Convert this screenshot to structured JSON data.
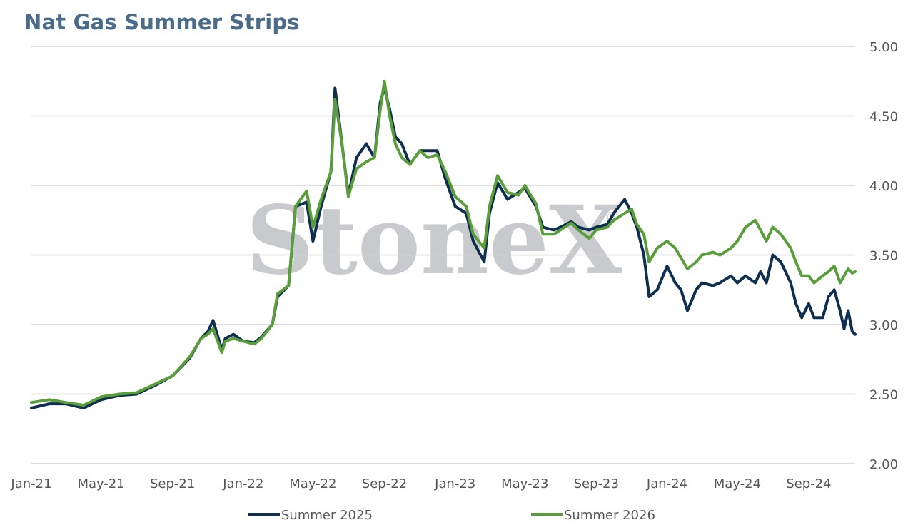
{
  "chart_data": {
    "type": "line",
    "title": "Nat Gas Summer Strips",
    "xlabel": "",
    "ylabel": "",
    "watermark": "StoneX",
    "ylim": [
      2.0,
      5.0
    ],
    "y_ticks": [
      "5.00",
      "4.50",
      "4.00",
      "3.50",
      "3.00",
      "2.50",
      "2.00"
    ],
    "x_ticks": [
      "Jan-21",
      "May-21",
      "Sep-21",
      "Jan-22",
      "May-22",
      "Sep-22",
      "Jan-23",
      "May-23",
      "Sep-23",
      "Jan-24",
      "May-24",
      "Sep-24"
    ],
    "x_range": [
      "2021-01-01",
      "2024-11-20"
    ],
    "grid": true,
    "legend_position": "bottom",
    "series": [
      {
        "name": "Summer 2025",
        "color": "#0e2f50",
        "points": [
          [
            "2021-01-01",
            2.4
          ],
          [
            "2021-02-01",
            2.43
          ],
          [
            "2021-03-01",
            2.43
          ],
          [
            "2021-04-01",
            2.4
          ],
          [
            "2021-05-01",
            2.46
          ],
          [
            "2021-06-01",
            2.49
          ],
          [
            "2021-07-01",
            2.5
          ],
          [
            "2021-08-01",
            2.56
          ],
          [
            "2021-09-01",
            2.63
          ],
          [
            "2021-10-01",
            2.76
          ],
          [
            "2021-10-20",
            2.9
          ],
          [
            "2021-11-01",
            2.95
          ],
          [
            "2021-11-10",
            3.03
          ],
          [
            "2021-11-25",
            2.82
          ],
          [
            "2021-12-01",
            2.9
          ],
          [
            "2021-12-15",
            2.93
          ],
          [
            "2022-01-01",
            2.88
          ],
          [
            "2022-01-20",
            2.87
          ],
          [
            "2022-02-01",
            2.91
          ],
          [
            "2022-02-20",
            3.0
          ],
          [
            "2022-03-01",
            3.2
          ],
          [
            "2022-03-20",
            3.28
          ],
          [
            "2022-04-01",
            3.85
          ],
          [
            "2022-04-20",
            3.88
          ],
          [
            "2022-05-01",
            3.6
          ],
          [
            "2022-05-15",
            3.85
          ],
          [
            "2022-06-01",
            4.1
          ],
          [
            "2022-06-08",
            4.7
          ],
          [
            "2022-06-20",
            4.3
          ],
          [
            "2022-07-01",
            3.93
          ],
          [
            "2022-07-15",
            4.2
          ],
          [
            "2022-08-01",
            4.3
          ],
          [
            "2022-08-15",
            4.2
          ],
          [
            "2022-08-25",
            4.6
          ],
          [
            "2022-09-01",
            4.7
          ],
          [
            "2022-09-10",
            4.55
          ],
          [
            "2022-09-20",
            4.35
          ],
          [
            "2022-10-01",
            4.3
          ],
          [
            "2022-10-15",
            4.15
          ],
          [
            "2022-11-01",
            4.25
          ],
          [
            "2022-11-15",
            4.25
          ],
          [
            "2022-12-01",
            4.25
          ],
          [
            "2022-12-15",
            4.05
          ],
          [
            "2023-01-01",
            3.85
          ],
          [
            "2023-01-20",
            3.8
          ],
          [
            "2023-02-01",
            3.6
          ],
          [
            "2023-02-20",
            3.45
          ],
          [
            "2023-03-01",
            3.8
          ],
          [
            "2023-03-15",
            4.02
          ],
          [
            "2023-04-01",
            3.9
          ],
          [
            "2023-04-20",
            3.95
          ],
          [
            "2023-05-01",
            3.98
          ],
          [
            "2023-05-20",
            3.85
          ],
          [
            "2023-06-01",
            3.7
          ],
          [
            "2023-06-20",
            3.68
          ],
          [
            "2023-07-01",
            3.7
          ],
          [
            "2023-07-20",
            3.74
          ],
          [
            "2023-08-01",
            3.7
          ],
          [
            "2023-08-20",
            3.68
          ],
          [
            "2023-09-01",
            3.7
          ],
          [
            "2023-09-20",
            3.72
          ],
          [
            "2023-10-01",
            3.8
          ],
          [
            "2023-10-20",
            3.9
          ],
          [
            "2023-11-01",
            3.8
          ],
          [
            "2023-11-10",
            3.7
          ],
          [
            "2023-11-22",
            3.5
          ],
          [
            "2023-12-01",
            3.2
          ],
          [
            "2023-12-15",
            3.25
          ],
          [
            "2024-01-01",
            3.42
          ],
          [
            "2024-01-15",
            3.3
          ],
          [
            "2024-01-25",
            3.25
          ],
          [
            "2024-02-05",
            3.1
          ],
          [
            "2024-02-20",
            3.25
          ],
          [
            "2024-03-01",
            3.3
          ],
          [
            "2024-03-20",
            3.28
          ],
          [
            "2024-04-01",
            3.3
          ],
          [
            "2024-04-20",
            3.35
          ],
          [
            "2024-05-01",
            3.3
          ],
          [
            "2024-05-15",
            3.35
          ],
          [
            "2024-06-01",
            3.3
          ],
          [
            "2024-06-10",
            3.38
          ],
          [
            "2024-06-20",
            3.3
          ],
          [
            "2024-07-01",
            3.5
          ],
          [
            "2024-07-15",
            3.45
          ],
          [
            "2024-08-01",
            3.3
          ],
          [
            "2024-08-10",
            3.15
          ],
          [
            "2024-08-20",
            3.05
          ],
          [
            "2024-09-01",
            3.15
          ],
          [
            "2024-09-10",
            3.05
          ],
          [
            "2024-09-25",
            3.05
          ],
          [
            "2024-10-05",
            3.2
          ],
          [
            "2024-10-15",
            3.25
          ],
          [
            "2024-10-25",
            3.1
          ],
          [
            "2024-11-01",
            2.97
          ],
          [
            "2024-11-08",
            3.1
          ],
          [
            "2024-11-15",
            2.95
          ],
          [
            "2024-11-20",
            2.93
          ]
        ]
      },
      {
        "name": "Summer 2026",
        "color": "#5a9e3c",
        "points": [
          [
            "2021-01-01",
            2.44
          ],
          [
            "2021-02-01",
            2.46
          ],
          [
            "2021-03-01",
            2.44
          ],
          [
            "2021-04-01",
            2.42
          ],
          [
            "2021-05-01",
            2.48
          ],
          [
            "2021-06-01",
            2.5
          ],
          [
            "2021-07-01",
            2.51
          ],
          [
            "2021-08-01",
            2.57
          ],
          [
            "2021-09-01",
            2.63
          ],
          [
            "2021-10-01",
            2.77
          ],
          [
            "2021-10-20",
            2.9
          ],
          [
            "2021-11-01",
            2.93
          ],
          [
            "2021-11-10",
            2.97
          ],
          [
            "2021-11-25",
            2.8
          ],
          [
            "2021-12-01",
            2.88
          ],
          [
            "2021-12-15",
            2.9
          ],
          [
            "2022-01-01",
            2.88
          ],
          [
            "2022-01-20",
            2.86
          ],
          [
            "2022-02-01",
            2.9
          ],
          [
            "2022-02-20",
            3.0
          ],
          [
            "2022-03-01",
            3.22
          ],
          [
            "2022-03-20",
            3.28
          ],
          [
            "2022-04-01",
            3.85
          ],
          [
            "2022-04-20",
            3.96
          ],
          [
            "2022-05-01",
            3.7
          ],
          [
            "2022-05-15",
            3.9
          ],
          [
            "2022-06-01",
            4.1
          ],
          [
            "2022-06-08",
            4.62
          ],
          [
            "2022-06-20",
            4.3
          ],
          [
            "2022-07-01",
            3.92
          ],
          [
            "2022-07-15",
            4.12
          ],
          [
            "2022-08-01",
            4.17
          ],
          [
            "2022-08-15",
            4.2
          ],
          [
            "2022-08-25",
            4.55
          ],
          [
            "2022-09-01",
            4.75
          ],
          [
            "2022-09-10",
            4.5
          ],
          [
            "2022-09-20",
            4.3
          ],
          [
            "2022-10-01",
            4.2
          ],
          [
            "2022-10-15",
            4.15
          ],
          [
            "2022-11-01",
            4.25
          ],
          [
            "2022-11-15",
            4.2
          ],
          [
            "2022-12-01",
            4.22
          ],
          [
            "2022-12-15",
            4.1
          ],
          [
            "2023-01-01",
            3.92
          ],
          [
            "2023-01-20",
            3.85
          ],
          [
            "2023-02-01",
            3.65
          ],
          [
            "2023-02-20",
            3.55
          ],
          [
            "2023-03-01",
            3.85
          ],
          [
            "2023-03-15",
            4.07
          ],
          [
            "2023-04-01",
            3.95
          ],
          [
            "2023-04-20",
            3.93
          ],
          [
            "2023-05-01",
            4.0
          ],
          [
            "2023-05-20",
            3.87
          ],
          [
            "2023-06-01",
            3.65
          ],
          [
            "2023-06-20",
            3.65
          ],
          [
            "2023-07-01",
            3.68
          ],
          [
            "2023-07-20",
            3.73
          ],
          [
            "2023-08-01",
            3.68
          ],
          [
            "2023-08-20",
            3.62
          ],
          [
            "2023-09-01",
            3.68
          ],
          [
            "2023-09-20",
            3.7
          ],
          [
            "2023-10-01",
            3.75
          ],
          [
            "2023-10-20",
            3.8
          ],
          [
            "2023-11-01",
            3.83
          ],
          [
            "2023-11-10",
            3.72
          ],
          [
            "2023-11-22",
            3.65
          ],
          [
            "2023-12-01",
            3.45
          ],
          [
            "2023-12-15",
            3.55
          ],
          [
            "2024-01-01",
            3.6
          ],
          [
            "2024-01-15",
            3.55
          ],
          [
            "2024-01-25",
            3.48
          ],
          [
            "2024-02-05",
            3.4
          ],
          [
            "2024-02-20",
            3.45
          ],
          [
            "2024-03-01",
            3.5
          ],
          [
            "2024-03-20",
            3.52
          ],
          [
            "2024-04-01",
            3.5
          ],
          [
            "2024-04-20",
            3.55
          ],
          [
            "2024-05-01",
            3.6
          ],
          [
            "2024-05-15",
            3.7
          ],
          [
            "2024-06-01",
            3.75
          ],
          [
            "2024-06-10",
            3.68
          ],
          [
            "2024-06-20",
            3.6
          ],
          [
            "2024-07-01",
            3.7
          ],
          [
            "2024-07-15",
            3.65
          ],
          [
            "2024-08-01",
            3.55
          ],
          [
            "2024-08-10",
            3.45
          ],
          [
            "2024-08-20",
            3.35
          ],
          [
            "2024-09-01",
            3.35
          ],
          [
            "2024-09-10",
            3.3
          ],
          [
            "2024-09-25",
            3.35
          ],
          [
            "2024-10-05",
            3.38
          ],
          [
            "2024-10-15",
            3.42
          ],
          [
            "2024-10-25",
            3.3
          ],
          [
            "2024-11-01",
            3.35
          ],
          [
            "2024-11-08",
            3.4
          ],
          [
            "2024-11-15",
            3.37
          ],
          [
            "2024-11-20",
            3.38
          ]
        ]
      }
    ]
  }
}
